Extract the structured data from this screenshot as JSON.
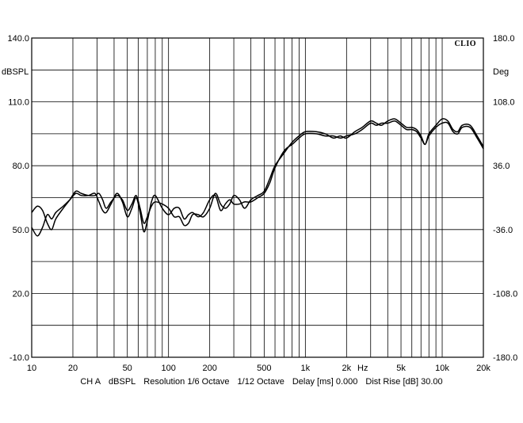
{
  "chart_data": {
    "type": "line",
    "brand": "CLIO",
    "left_axis": {
      "unit": "dBSPL",
      "range": [
        -10,
        140
      ],
      "ticks": [
        "140.0",
        "110.0",
        "80.0",
        "50.0",
        "20.0",
        "-10.0"
      ],
      "tick_values": [
        140,
        110,
        80,
        50,
        20,
        -10
      ]
    },
    "right_axis": {
      "unit": "Deg",
      "range": [
        -180,
        180
      ],
      "ticks": [
        "180.0",
        "108.0",
        "36.0",
        "-36.0",
        "-108.0",
        "-180.0"
      ]
    },
    "x_axis": {
      "scale": "log",
      "range": [
        10,
        20000
      ],
      "tick_values": [
        10,
        20,
        50,
        100,
        200,
        500,
        1000,
        2000,
        5000,
        10000,
        20000
      ],
      "tick_labels": [
        "10",
        "20",
        "50",
        "100",
        "200",
        "500",
        "1k",
        "2k",
        "5k",
        "10k",
        "20k"
      ],
      "unit": "Hz"
    },
    "grid": true,
    "series": [
      {
        "points": [
          [
            10,
            58
          ],
          [
            11,
            61
          ],
          [
            12,
            59
          ],
          [
            13,
            53
          ],
          [
            14,
            50
          ],
          [
            15,
            55
          ],
          [
            17,
            60
          ],
          [
            19,
            64
          ],
          [
            21,
            68
          ],
          [
            23,
            67
          ],
          [
            26,
            66
          ],
          [
            29,
            66
          ],
          [
            31,
            67
          ],
          [
            33,
            64
          ],
          [
            35,
            60
          ],
          [
            38,
            63
          ],
          [
            42,
            66
          ],
          [
            46,
            64
          ],
          [
            50,
            59
          ],
          [
            54,
            62
          ],
          [
            58,
            66
          ],
          [
            62,
            60
          ],
          [
            66,
            53
          ],
          [
            70,
            56
          ],
          [
            75,
            61
          ],
          [
            80,
            63
          ],
          [
            90,
            62
          ],
          [
            100,
            60
          ],
          [
            110,
            56
          ],
          [
            120,
            56
          ],
          [
            130,
            52
          ],
          [
            140,
            53
          ],
          [
            150,
            57
          ],
          [
            165,
            57
          ],
          [
            180,
            56
          ],
          [
            200,
            60
          ],
          [
            220,
            67
          ],
          [
            240,
            62
          ],
          [
            260,
            60
          ],
          [
            280,
            62
          ],
          [
            300,
            66
          ],
          [
            330,
            64
          ],
          [
            360,
            60
          ],
          [
            400,
            64
          ],
          [
            450,
            66
          ],
          [
            500,
            68
          ],
          [
            550,
            74
          ],
          [
            600,
            80
          ],
          [
            700,
            86
          ],
          [
            800,
            91
          ],
          [
            900,
            94
          ],
          [
            1000,
            96
          ],
          [
            1200,
            96
          ],
          [
            1400,
            95
          ],
          [
            1600,
            93
          ],
          [
            1800,
            94
          ],
          [
            2000,
            93
          ],
          [
            2300,
            96
          ],
          [
            2600,
            98
          ],
          [
            3000,
            101
          ],
          [
            3300,
            100
          ],
          [
            3600,
            99
          ],
          [
            4000,
            101
          ],
          [
            4500,
            102
          ],
          [
            5000,
            100
          ],
          [
            5500,
            98
          ],
          [
            6000,
            98
          ],
          [
            6500,
            97
          ],
          [
            7000,
            94
          ],
          [
            7500,
            90
          ],
          [
            8000,
            95
          ],
          [
            9000,
            99
          ],
          [
            10000,
            102
          ],
          [
            11000,
            101
          ],
          [
            12000,
            97
          ],
          [
            13000,
            96
          ],
          [
            14000,
            99
          ],
          [
            16000,
            99
          ],
          [
            18000,
            94
          ],
          [
            20000,
            89
          ]
        ]
      },
      {
        "points": [
          [
            10,
            51
          ],
          [
            11,
            47
          ],
          [
            12,
            51
          ],
          [
            13,
            57
          ],
          [
            14,
            55
          ],
          [
            15,
            58
          ],
          [
            17,
            61
          ],
          [
            19,
            64
          ],
          [
            21,
            67
          ],
          [
            23,
            66
          ],
          [
            26,
            66
          ],
          [
            29,
            67
          ],
          [
            31,
            63
          ],
          [
            33,
            59
          ],
          [
            35,
            58
          ],
          [
            38,
            62
          ],
          [
            42,
            67
          ],
          [
            46,
            63
          ],
          [
            50,
            56
          ],
          [
            54,
            60
          ],
          [
            58,
            65
          ],
          [
            62,
            58
          ],
          [
            66,
            49
          ],
          [
            70,
            54
          ],
          [
            75,
            63
          ],
          [
            80,
            66
          ],
          [
            90,
            60
          ],
          [
            100,
            57
          ],
          [
            110,
            60
          ],
          [
            120,
            60
          ],
          [
            130,
            55
          ],
          [
            140,
            57
          ],
          [
            150,
            58
          ],
          [
            165,
            56
          ],
          [
            180,
            58
          ],
          [
            200,
            64
          ],
          [
            220,
            66
          ],
          [
            240,
            59
          ],
          [
            260,
            62
          ],
          [
            280,
            64
          ],
          [
            300,
            62
          ],
          [
            330,
            62
          ],
          [
            360,
            63
          ],
          [
            400,
            63
          ],
          [
            450,
            65
          ],
          [
            500,
            67
          ],
          [
            550,
            72
          ],
          [
            600,
            79
          ],
          [
            700,
            87
          ],
          [
            800,
            90
          ],
          [
            900,
            93
          ],
          [
            1000,
            95
          ],
          [
            1200,
            95
          ],
          [
            1400,
            94
          ],
          [
            1600,
            94
          ],
          [
            1800,
            93
          ],
          [
            2000,
            94
          ],
          [
            2300,
            95
          ],
          [
            2600,
            97
          ],
          [
            3000,
            100
          ],
          [
            3300,
            99
          ],
          [
            3600,
            100
          ],
          [
            4000,
            100
          ],
          [
            4500,
            101
          ],
          [
            5000,
            99
          ],
          [
            5500,
            97
          ],
          [
            6000,
            97
          ],
          [
            6500,
            96
          ],
          [
            7000,
            93
          ],
          [
            7500,
            90
          ],
          [
            8000,
            94
          ],
          [
            9000,
            98
          ],
          [
            10000,
            100
          ],
          [
            11000,
            100
          ],
          [
            12000,
            96
          ],
          [
            13000,
            95
          ],
          [
            14000,
            98
          ],
          [
            16000,
            98
          ],
          [
            18000,
            93
          ],
          [
            20000,
            88
          ]
        ]
      }
    ]
  },
  "footer": {
    "channel": "CH A",
    "unit": "dBSPL",
    "resolution": "Resolution 1/6 Octave",
    "smoothing": "1/12 Octave",
    "delay": "Delay [ms] 0.000",
    "dist_rise": "Dist Rise [dB] 30.00"
  }
}
